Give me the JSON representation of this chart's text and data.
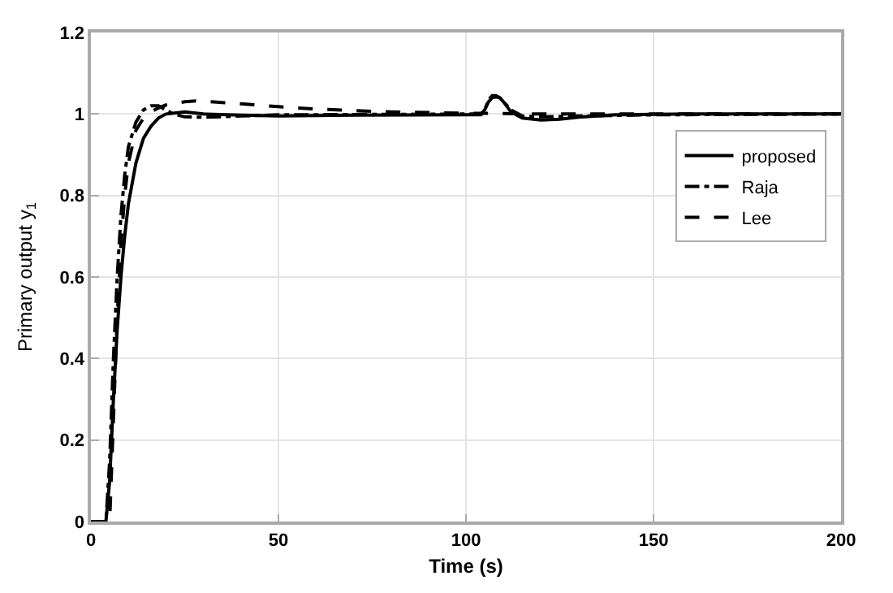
{
  "chart_data": {
    "type": "line",
    "xlabel": "Time (s)",
    "ylabel": "Primary output y$_{1}$",
    "xlim": [
      0,
      200
    ],
    "ylim": [
      0,
      1.2
    ],
    "xticks": [
      0,
      50,
      100,
      150,
      200
    ],
    "yticks": [
      0,
      0.2,
      0.4,
      0.6,
      0.8,
      1,
      1.2
    ],
    "grid": true,
    "legend": "top right",
    "marker": "none",
    "series": [
      {
        "name": "proposed",
        "color": "#000000",
        "line_style": "solid",
        "x": [
          0,
          4,
          5,
          6,
          7,
          8,
          9,
          10,
          12,
          14,
          16,
          18,
          20,
          25,
          30,
          40,
          50,
          70,
          100,
          104,
          105,
          106,
          107,
          108,
          109,
          110,
          112,
          115,
          120,
          125,
          130,
          140,
          160,
          200
        ],
        "values": [
          0,
          0,
          0.1,
          0.3,
          0.47,
          0.6,
          0.7,
          0.78,
          0.88,
          0.94,
          0.97,
          0.99,
          1.0,
          1.005,
          1.0,
          0.997,
          0.995,
          0.997,
          0.998,
          0.998,
          1.01,
          1.03,
          1.04,
          1.042,
          1.04,
          1.03,
          1.005,
          0.99,
          0.985,
          0.987,
          0.992,
          0.998,
          1.0,
          1.0
        ]
      },
      {
        "name": "Raja",
        "color": "#000000",
        "line_style": "dashdot",
        "x": [
          0,
          4,
          5,
          6,
          7,
          8,
          9,
          10,
          12,
          14,
          16,
          18,
          20,
          22,
          25,
          30,
          40,
          50,
          100,
          104,
          105,
          106,
          107,
          108,
          109,
          110,
          112,
          115,
          120,
          130,
          150,
          200
        ],
        "values": [
          0,
          0,
          0.15,
          0.4,
          0.6,
          0.75,
          0.85,
          0.92,
          0.98,
          1.01,
          1.02,
          1.02,
          1.01,
          1.0,
          0.993,
          0.992,
          0.995,
          0.998,
          1.0,
          1.0,
          1.01,
          1.035,
          1.045,
          1.045,
          1.04,
          1.03,
          1.01,
          0.995,
          0.993,
          0.995,
          0.998,
          1.0
        ]
      },
      {
        "name": "Lee",
        "color": "#000000",
        "line_style": "dashed",
        "x": [
          0,
          5,
          6,
          7,
          8,
          9,
          10,
          12,
          14,
          16,
          18,
          20,
          25,
          28,
          32,
          40,
          50,
          60,
          80,
          100,
          120,
          150,
          200
        ],
        "values": [
          0,
          0,
          0.25,
          0.5,
          0.68,
          0.8,
          0.88,
          0.96,
          0.99,
          1.005,
          1.015,
          1.022,
          1.03,
          1.032,
          1.03,
          1.025,
          1.018,
          1.012,
          1.005,
          1.002,
          1.0,
          1.0,
          1.0
        ]
      }
    ]
  }
}
